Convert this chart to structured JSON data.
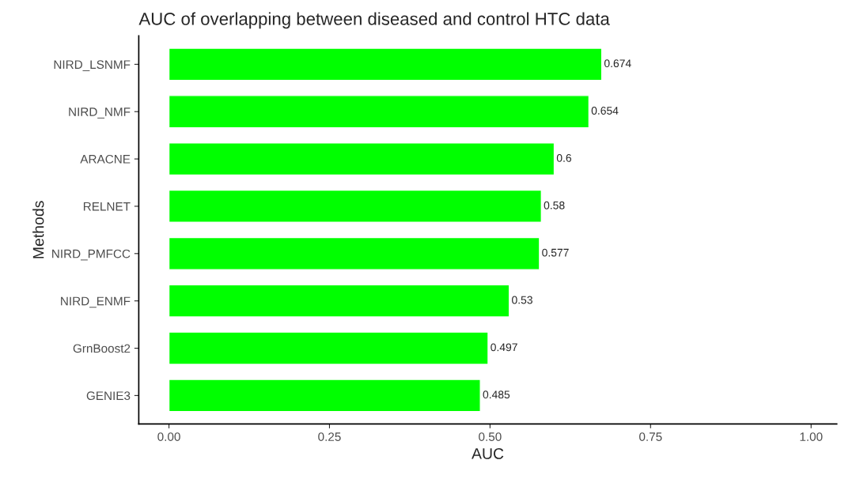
{
  "chart_data": {
    "type": "bar",
    "orientation": "horizontal",
    "title": "AUC of overlapping between diseased and control HTC data",
    "xlabel": "AUC",
    "ylabel": "Methods",
    "categories": [
      "NIRD_LSNMF",
      "NIRD_NMF",
      "ARACNE",
      "RELNET",
      "NIRD_PMFCC",
      "NIRD_ENMF",
      "GrnBoost2",
      "GENIE3"
    ],
    "values": [
      0.674,
      0.654,
      0.6,
      0.58,
      0.577,
      0.53,
      0.497,
      0.485
    ],
    "color": "#00ff00",
    "xlim": [
      -0.047,
      1.04
    ],
    "xticks": [
      {
        "value": 0,
        "label": "0.00"
      },
      {
        "value": 0.25,
        "label": "0.25"
      },
      {
        "value": 0.5,
        "label": "0.50"
      },
      {
        "value": 0.75,
        "label": "0.75"
      },
      {
        "value": 1,
        "label": "1.00"
      }
    ],
    "data_labels": true,
    "grid": false,
    "legend": false
  }
}
